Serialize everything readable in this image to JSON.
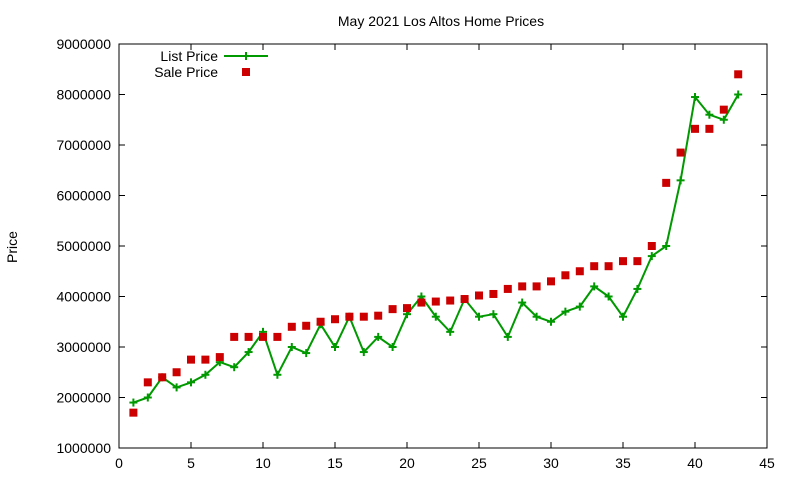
{
  "chart_data": {
    "type": "line",
    "title": "May 2021 Los Altos Home Prices",
    "xlabel": "",
    "ylabel": "Price",
    "xlim": [
      0,
      45
    ],
    "ylim": [
      1000000,
      9000000
    ],
    "xticks": [
      0,
      5,
      10,
      15,
      20,
      25,
      30,
      35,
      40,
      45
    ],
    "yticks": [
      1000000,
      2000000,
      3000000,
      4000000,
      5000000,
      6000000,
      7000000,
      8000000,
      9000000
    ],
    "xtick_labels": [
      "0",
      "5",
      "10",
      "15",
      "20",
      "25",
      "30",
      "35",
      "40",
      "45"
    ],
    "ytick_labels": [
      "1000000",
      "2000000",
      "3000000",
      "4000000",
      "5000000",
      "6000000",
      "7000000",
      "8000000",
      "9000000"
    ],
    "grid": false,
    "legend_position": "top-left",
    "x": [
      1,
      2,
      3,
      4,
      5,
      6,
      7,
      8,
      9,
      10,
      11,
      12,
      13,
      14,
      15,
      16,
      17,
      18,
      19,
      20,
      21,
      22,
      23,
      24,
      25,
      26,
      27,
      28,
      29,
      30,
      31,
      32,
      33,
      34,
      35,
      36,
      37,
      38,
      39,
      40,
      41,
      42,
      43
    ],
    "series": [
      {
        "name": "List Price",
        "style": "line-points",
        "marker": "plus",
        "color": "#009900",
        "values": [
          1900000,
          2000000,
          2400000,
          2200000,
          2300000,
          2450000,
          2700000,
          2600000,
          2900000,
          3300000,
          2450000,
          3000000,
          2880000,
          3450000,
          3000000,
          3600000,
          2900000,
          3200000,
          3000000,
          3650000,
          4000000,
          3600000,
          3300000,
          3950000,
          3600000,
          3650000,
          3200000,
          3880000,
          3600000,
          3500000,
          3700000,
          3800000,
          4200000,
          4000000,
          3600000,
          4150000,
          4800000,
          5000000,
          6300000,
          7950000,
          7600000,
          7500000,
          8000000
        ]
      },
      {
        "name": "Sale Price",
        "style": "points",
        "marker": "square",
        "color": "#cc0000",
        "values": [
          1700000,
          2300000,
          2400000,
          2500000,
          2750000,
          2750000,
          2800000,
          3200000,
          3200000,
          3200000,
          3200000,
          3400000,
          3420000,
          3500000,
          3550000,
          3600000,
          3600000,
          3620000,
          3750000,
          3770000,
          3880000,
          3900000,
          3920000,
          3950000,
          4020000,
          4050000,
          4150000,
          4200000,
          4200000,
          4300000,
          4420000,
          4500000,
          4600000,
          4600000,
          4700000,
          4700000,
          5000000,
          6250000,
          6850000,
          7320000,
          7320000,
          7700000,
          8400000
        ]
      }
    ]
  }
}
